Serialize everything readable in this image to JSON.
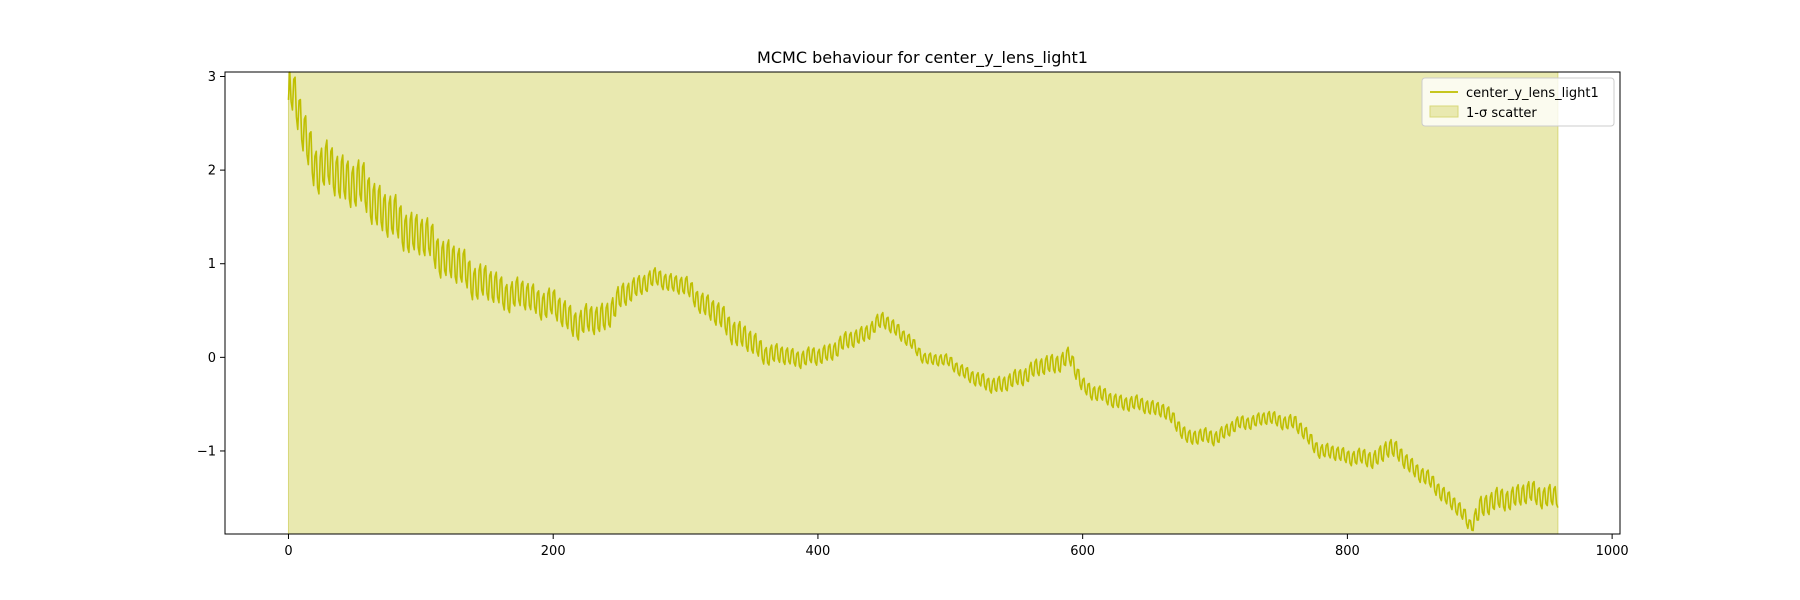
{
  "chart_data": {
    "type": "line",
    "title": "MCMC behaviour for center_y_lens_light1",
    "xlabel": "",
    "ylabel": "",
    "xlim": [
      -47.95,
      1005.95
    ],
    "ylim": [
      -1.887,
      3.048
    ],
    "x_ticks": [
      0,
      200,
      400,
      600,
      800,
      1000
    ],
    "x_tick_labels": [
      "0",
      "200",
      "400",
      "600",
      "800",
      "1000"
    ],
    "y_ticks": [
      -1,
      0,
      1,
      2,
      3
    ],
    "y_tick_labels": [
      "−1",
      "0",
      "1",
      "2",
      "3"
    ],
    "grid": false,
    "legend_position": "upper right",
    "colors": {
      "line": "#bfbf00",
      "band": "#e9e9b0",
      "band_edge": "#d8d87a"
    },
    "scatter_band": {
      "name": "1-σ scatter",
      "x_range": [
        0,
        959
      ],
      "y_range": [
        -1.887,
        3.048
      ]
    },
    "series": [
      {
        "name": "center_y_lens_light1",
        "trend_x": [
          0,
          10,
          20,
          40,
          60,
          80,
          100,
          120,
          140,
          160,
          180,
          200,
          220,
          240,
          260,
          280,
          300,
          320,
          340,
          360,
          380,
          400,
          420,
          440,
          450,
          460,
          480,
          500,
          520,
          540,
          560,
          580,
          590,
          600,
          620,
          640,
          660,
          680,
          700,
          720,
          740,
          760,
          780,
          800,
          820,
          830,
          840,
          860,
          880,
          893,
          900,
          920,
          940,
          959
        ],
        "trend_y": [
          2.9,
          2.5,
          2.05,
          1.95,
          1.75,
          1.45,
          1.3,
          1.05,
          0.85,
          0.7,
          0.65,
          0.55,
          0.35,
          0.45,
          0.75,
          0.85,
          0.75,
          0.5,
          0.25,
          0.05,
          0.0,
          0.0,
          0.15,
          0.3,
          0.4,
          0.3,
          0.0,
          -0.05,
          -0.25,
          -0.3,
          -0.15,
          -0.05,
          0.0,
          -0.3,
          -0.45,
          -0.5,
          -0.55,
          -0.85,
          -0.85,
          -0.7,
          -0.65,
          -0.7,
          -1.0,
          -1.05,
          -1.1,
          -0.95,
          -1.05,
          -1.3,
          -1.55,
          -1.8,
          -1.6,
          -1.5,
          -1.45,
          -1.5
        ],
        "oscillation_amplitude": [
          0.3,
          0.32,
          0.32,
          0.32,
          0.32,
          0.3,
          0.28,
          0.27,
          0.25,
          0.22,
          0.2,
          0.2,
          0.2,
          0.2,
          0.15,
          0.12,
          0.13,
          0.17,
          0.18,
          0.14,
          0.12,
          0.12,
          0.12,
          0.11,
          0.11,
          0.1,
          0.08,
          0.08,
          0.1,
          0.11,
          0.12,
          0.13,
          0.12,
          0.11,
          0.1,
          0.1,
          0.1,
          0.1,
          0.1,
          0.09,
          0.09,
          0.1,
          0.1,
          0.1,
          0.12,
          0.13,
          0.12,
          0.11,
          0.11,
          0.1,
          0.15,
          0.15,
          0.15,
          0.15
        ],
        "oscillation_period": 4
      }
    ]
  }
}
